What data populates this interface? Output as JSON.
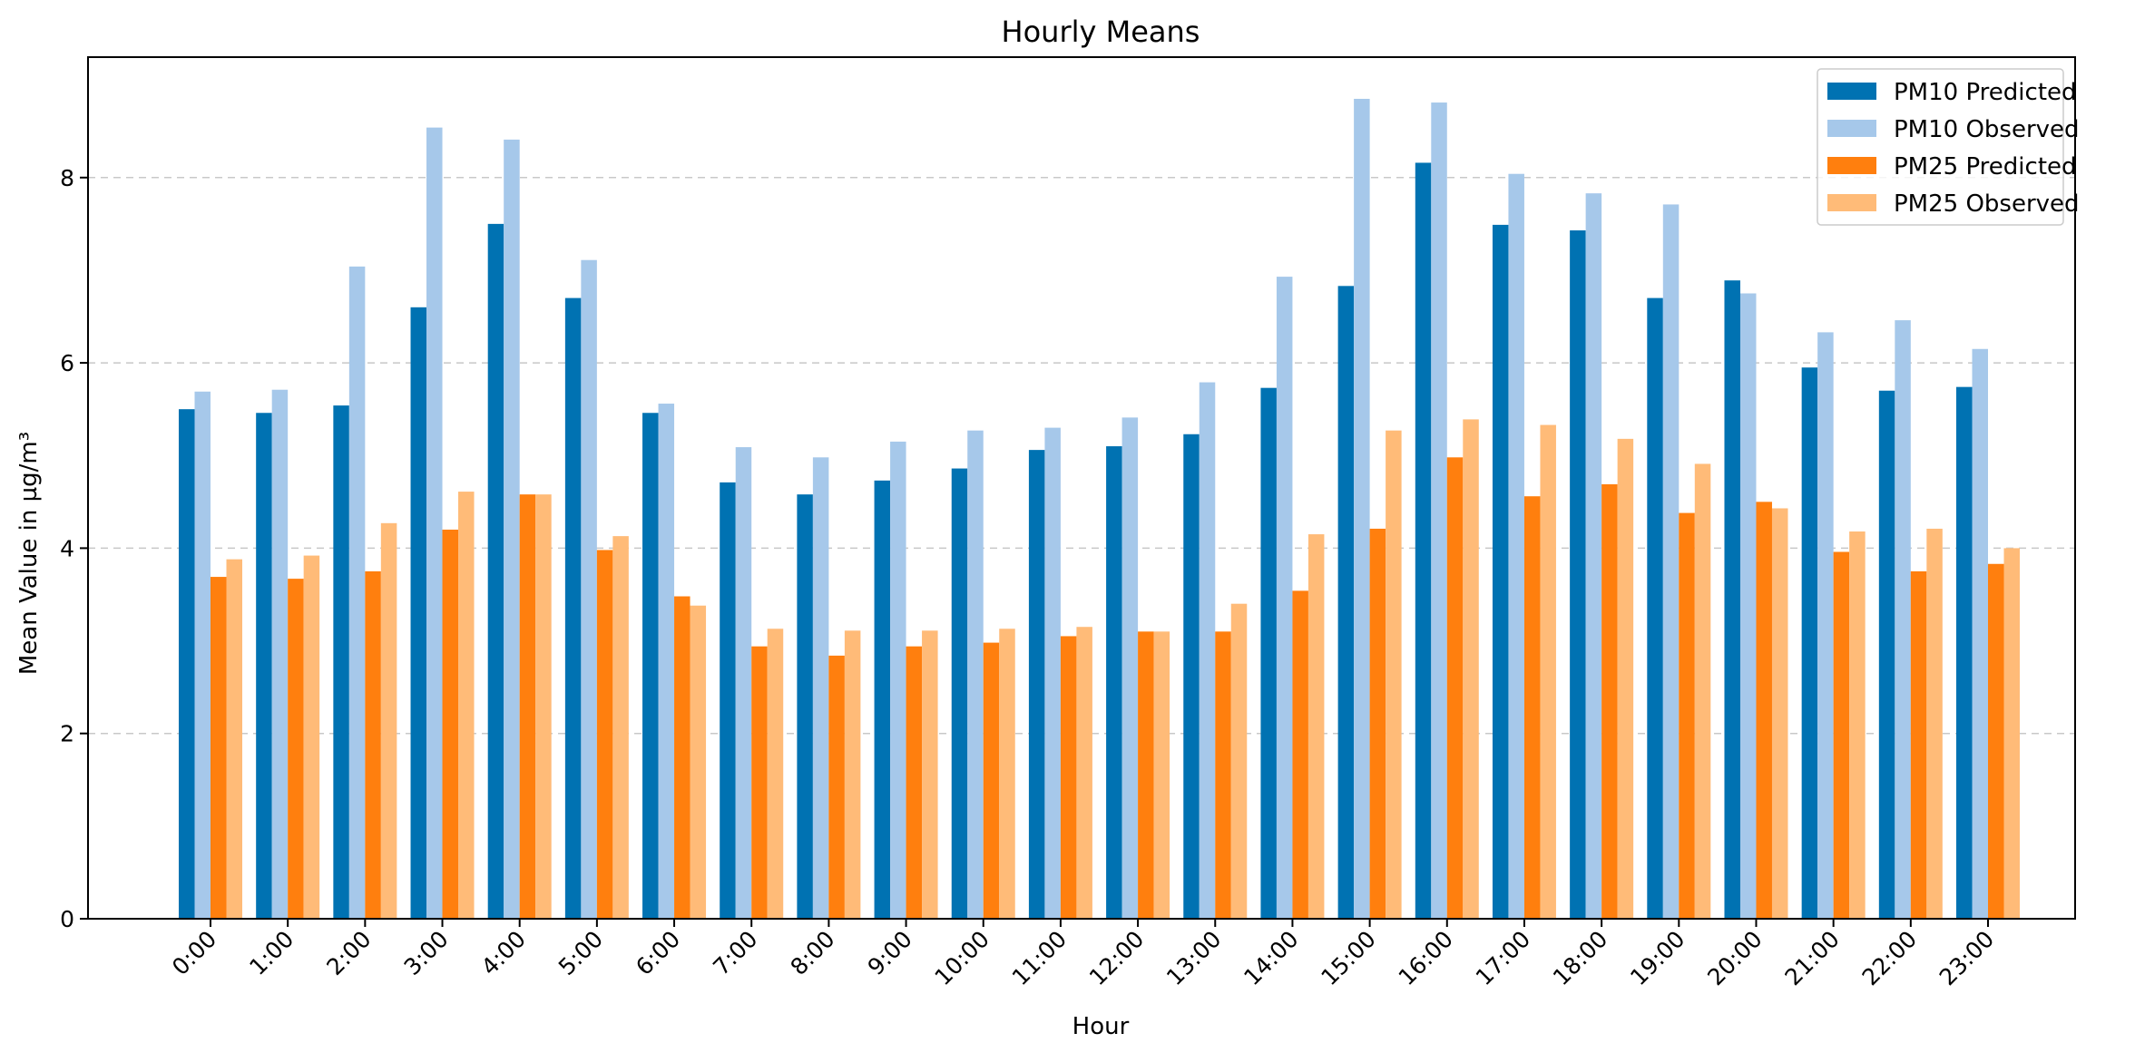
{
  "chart_data": {
    "type": "bar",
    "title": "Hourly Means",
    "xlabel": "Hour",
    "ylabel": "Mean Value in µg/m³",
    "ylim": [
      0,
      9.3
    ],
    "yticks": [
      0,
      2,
      4,
      6,
      8
    ],
    "grid": "horizontal dashed",
    "legend_position": "top-right",
    "categories": [
      "0:00",
      "1:00",
      "2:00",
      "3:00",
      "4:00",
      "5:00",
      "6:00",
      "7:00",
      "8:00",
      "9:00",
      "10:00",
      "11:00",
      "12:00",
      "13:00",
      "14:00",
      "15:00",
      "16:00",
      "17:00",
      "18:00",
      "19:00",
      "20:00",
      "21:00",
      "22:00",
      "23:00"
    ],
    "series": [
      {
        "name": "PM10 Predicted",
        "color": "#0072B2",
        "values": [
          5.5,
          5.46,
          5.54,
          6.6,
          7.5,
          6.7,
          5.46,
          4.71,
          4.58,
          4.73,
          4.86,
          5.06,
          5.1,
          5.23,
          5.73,
          6.83,
          8.16,
          7.49,
          7.43,
          6.7,
          6.89,
          5.95,
          5.7,
          5.74
        ]
      },
      {
        "name": "PM10 Observed",
        "color": "#A6C8EA",
        "values": [
          5.69,
          5.71,
          7.04,
          8.54,
          8.41,
          7.11,
          5.56,
          5.09,
          4.98,
          5.15,
          5.27,
          5.3,
          5.41,
          5.79,
          6.93,
          8.85,
          8.81,
          8.04,
          7.83,
          7.71,
          6.75,
          6.33,
          6.46,
          6.15
        ]
      },
      {
        "name": "PM25 Predicted",
        "color": "#FF7F0E",
        "values": [
          3.69,
          3.67,
          3.75,
          4.2,
          4.58,
          3.98,
          3.48,
          2.94,
          2.84,
          2.94,
          2.98,
          3.05,
          3.1,
          3.1,
          3.54,
          4.21,
          4.98,
          4.56,
          4.69,
          4.38,
          4.5,
          3.96,
          3.75,
          3.83
        ]
      },
      {
        "name": "PM25 Observed",
        "color": "#FFBB78",
        "values": [
          3.88,
          3.92,
          4.27,
          4.61,
          4.58,
          4.13,
          3.38,
          3.13,
          3.11,
          3.11,
          3.13,
          3.15,
          3.1,
          3.4,
          4.15,
          5.27,
          5.39,
          5.33,
          5.18,
          4.91,
          4.43,
          4.18,
          4.21,
          4.0
        ]
      }
    ]
  }
}
